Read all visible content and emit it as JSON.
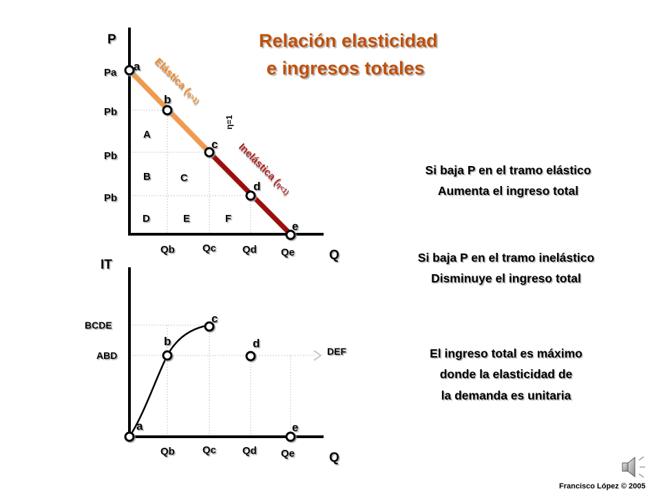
{
  "title": {
    "line1": "Relación elasticidad",
    "line2": "e ingresos totales"
  },
  "top_chart": {
    "y_axis_label": "P",
    "x_axis_label": "Q",
    "price_labels": [
      "Pa",
      "Pb",
      "Pb",
      "Pb"
    ],
    "quantity_labels": [
      "Qb",
      "Qc",
      "Qd",
      "Qe"
    ],
    "point_labels": [
      "a",
      "b",
      "c",
      "d",
      "e"
    ],
    "area_labels": [
      "A",
      "B",
      "C",
      "D",
      "E",
      "F"
    ],
    "elastic_label": "Elástica (",
    "elastic_eta": "η>1)",
    "unit_label": "η=1",
    "inelastic_label": "Inelástica (",
    "inelastic_eta": "η<1)"
  },
  "bottom_chart": {
    "y_axis_label": "IT",
    "x_axis_label": "Q",
    "income_labels": [
      "BCDE",
      "ABD"
    ],
    "def_label": "DEF",
    "quantity_labels": [
      "Qb",
      "Qc",
      "Qd",
      "Qe"
    ],
    "point_labels": [
      "a",
      "b",
      "c",
      "d",
      "e"
    ]
  },
  "notes": {
    "elastic_l1": "Si baja P en el tramo elástico",
    "elastic_l2": "Aumenta el ingreso total",
    "inelastic_l1": "Si baja P en el tramo inelástico",
    "inelastic_l2": "Disminuye el ingreso total",
    "max_l1": "El ingreso total es máximo",
    "max_l2": "donde la elasticidad de",
    "max_l3": "la demanda es unitaria"
  },
  "credit": "Francisco López © 2005",
  "colors": {
    "title": "#C0500A",
    "elastic_segment": "#F29A4A",
    "elastic_text": "#F28C28",
    "inelastic_segment": "#A01010",
    "inelastic_text": "#B01818",
    "guide_lines": "#C8C8C8",
    "axes": "#000000"
  },
  "icons": [
    "speaker-icon"
  ]
}
